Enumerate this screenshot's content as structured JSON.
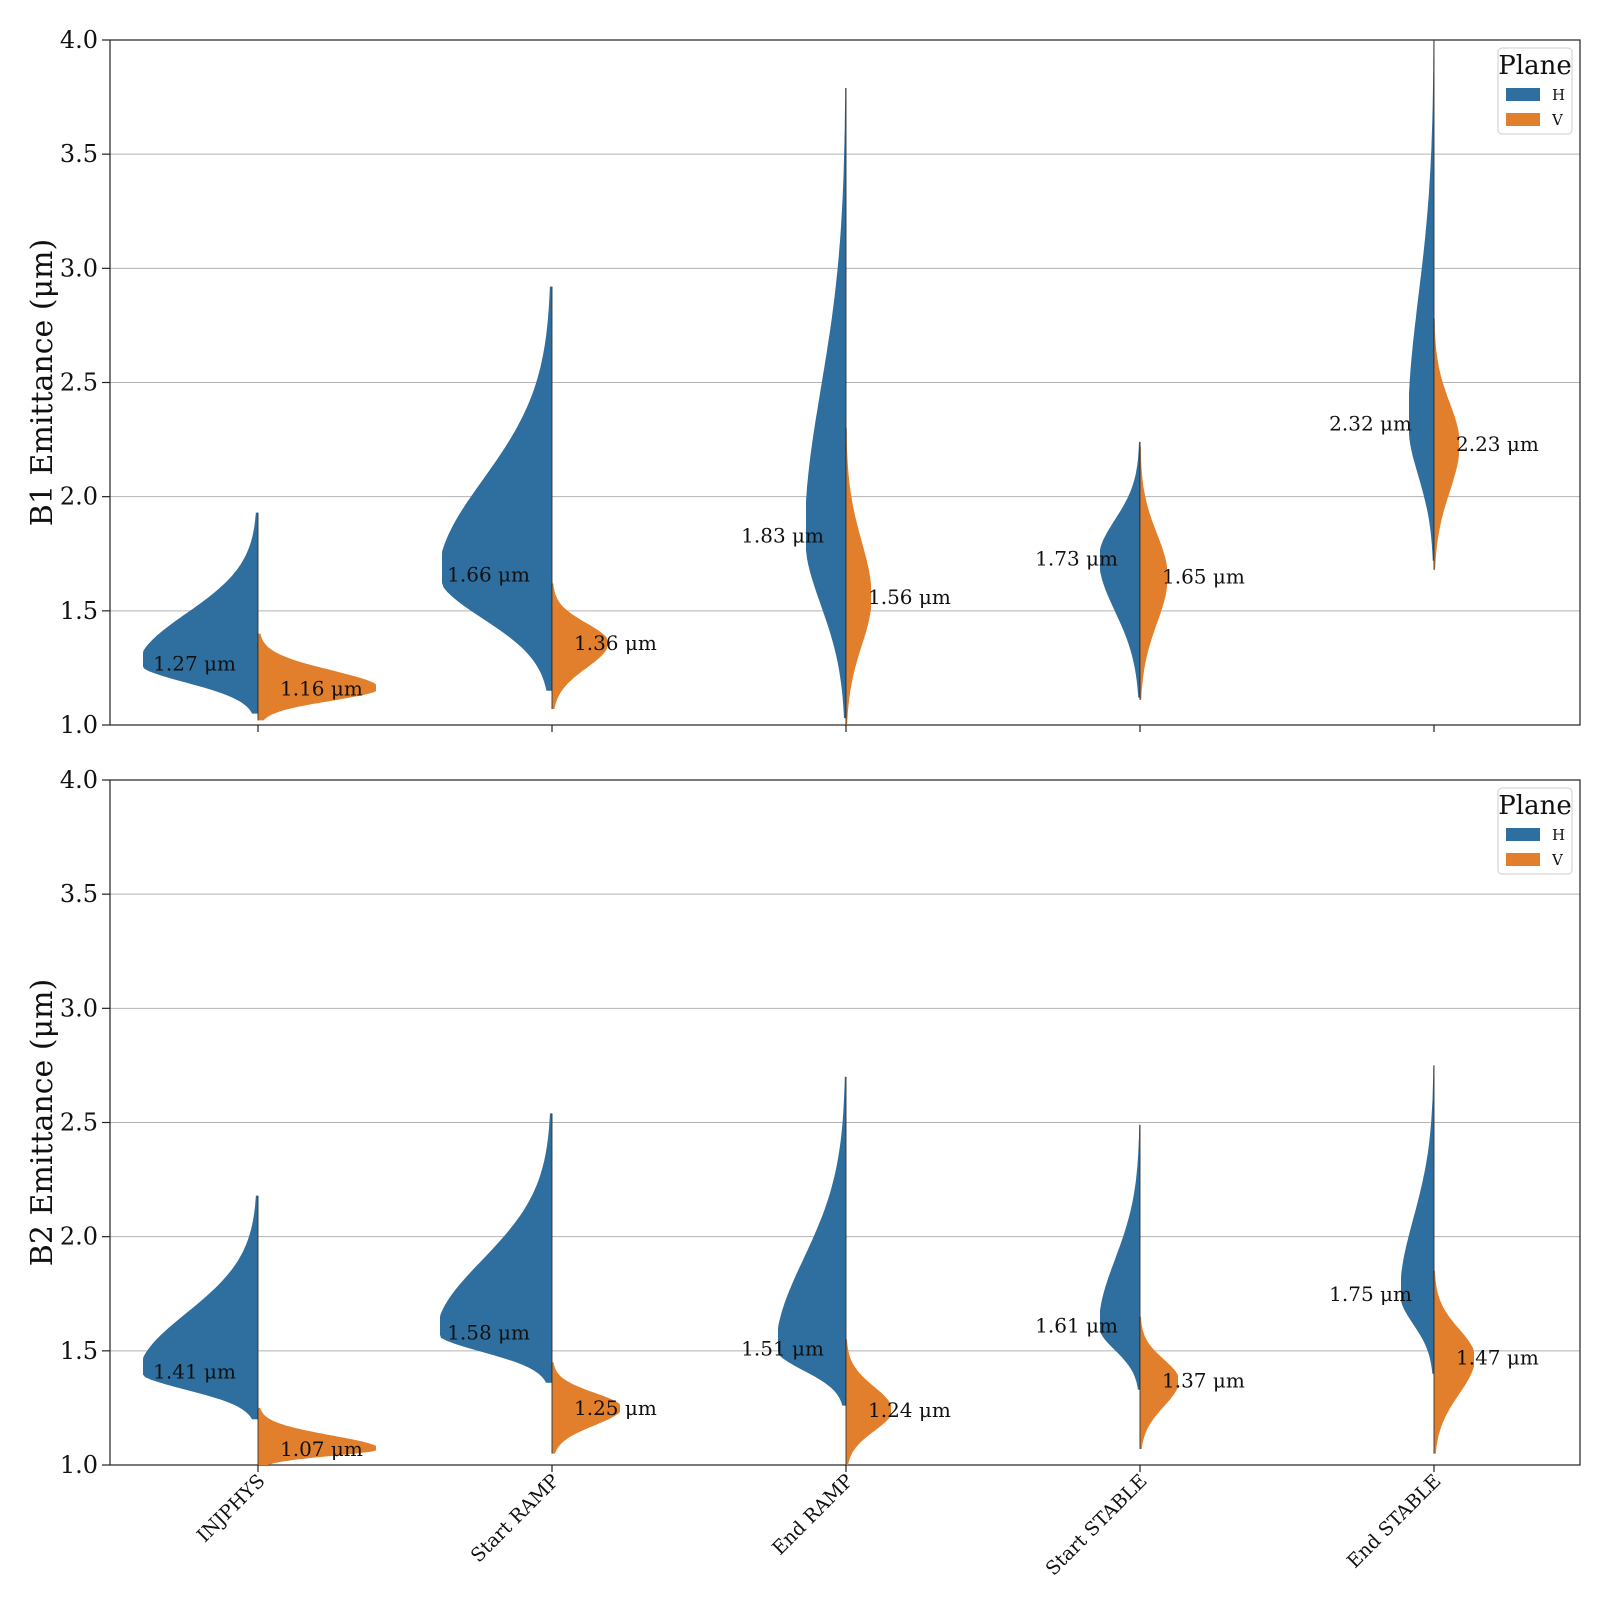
{
  "colors": {
    "H": "#2f6fa0",
    "V": "#e17f2c",
    "grid": "#b3b3b3",
    "axis": "#222222",
    "median_line": "#333333"
  },
  "categories": [
    "INJPHYS",
    "Start RAMP",
    "End RAMP",
    "Start STABLE",
    "End STABLE"
  ],
  "legend": {
    "title": "Plane",
    "entries": [
      "H",
      "V"
    ]
  },
  "unit_suffix": "μm",
  "chart_data": [
    {
      "type": "violin",
      "ylabel": "B1 Emittance (μm)",
      "ylim": [
        1.0,
        4.0
      ],
      "yticks": [
        "1.0",
        "1.5",
        "2.0",
        "2.5",
        "3.0",
        "3.5",
        "4.0"
      ],
      "grid": true,
      "legend_position": "top-right",
      "categories": [
        "INJPHYS",
        "Start RAMP",
        "End RAMP",
        "Start STABLE",
        "End STABLE"
      ],
      "series": [
        {
          "name": "H",
          "medians": [
            1.27,
            1.66,
            1.83,
            1.73,
            2.32
          ],
          "labels": [
            "1.27 μm",
            "1.66 μm",
            "1.83 μm",
            "1.73 μm",
            "2.32 μm"
          ],
          "range": [
            [
              1.05,
              1.93
            ],
            [
              1.15,
              2.92
            ],
            [
              1.03,
              3.79
            ],
            [
              1.12,
              2.24
            ],
            [
              1.72,
              4.0
            ]
          ]
        },
        {
          "name": "V",
          "medians": [
            1.16,
            1.36,
            1.56,
            1.65,
            2.23
          ],
          "labels": [
            "1.16 μm",
            "1.36 μm",
            "1.56 μm",
            "1.65 μm",
            "2.23 μm"
          ],
          "range": [
            [
              1.02,
              1.4
            ],
            [
              1.07,
              1.62
            ],
            [
              1.0,
              2.3
            ],
            [
              1.11,
              2.22
            ],
            [
              1.68,
              2.78
            ]
          ]
        }
      ]
    },
    {
      "type": "violin",
      "ylabel": "B2 Emittance (μm)",
      "ylim": [
        1.0,
        4.0
      ],
      "yticks": [
        "1.0",
        "1.5",
        "2.0",
        "2.5",
        "3.0",
        "3.5",
        "4.0"
      ],
      "grid": true,
      "legend_position": "top-right",
      "categories": [
        "INJPHYS",
        "Start RAMP",
        "End RAMP",
        "Start STABLE",
        "End STABLE"
      ],
      "series": [
        {
          "name": "H",
          "medians": [
            1.41,
            1.58,
            1.51,
            1.61,
            1.75
          ],
          "labels": [
            "1.41 μm",
            "1.58 μm",
            "1.51 μm",
            "1.61 μm",
            "1.75 μm"
          ],
          "range": [
            [
              1.2,
              2.18
            ],
            [
              1.36,
              2.54
            ],
            [
              1.26,
              2.7
            ],
            [
              1.33,
              2.49
            ],
            [
              1.4,
              2.75
            ]
          ]
        },
        {
          "name": "V",
          "medians": [
            1.07,
            1.25,
            1.24,
            1.37,
            1.47
          ],
          "labels": [
            "1.07 μm",
            "1.25 μm",
            "1.24 μm",
            "1.37 μm",
            "1.47 μm"
          ],
          "range": [
            [
              1.0,
              1.25
            ],
            [
              1.05,
              1.45
            ],
            [
              1.0,
              1.55
            ],
            [
              1.07,
              1.65
            ],
            [
              1.05,
              1.85
            ]
          ]
        }
      ]
    }
  ]
}
